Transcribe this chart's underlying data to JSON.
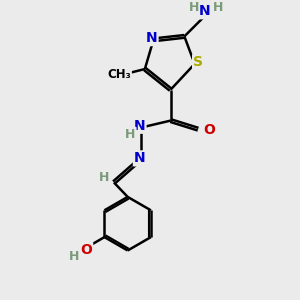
{
  "background_color": "#ebebeb",
  "atom_colors": {
    "C": "#000000",
    "H": "#7a9a7a",
    "N": "#0000cc",
    "O": "#cc0000",
    "S": "#aaaa00"
  },
  "bond_color": "#000000",
  "bond_width": 1.8,
  "figsize": [
    3.0,
    3.0
  ],
  "dpi": 100,
  "xlim": [
    0.0,
    6.5
  ],
  "ylim": [
    0.0,
    8.5
  ]
}
